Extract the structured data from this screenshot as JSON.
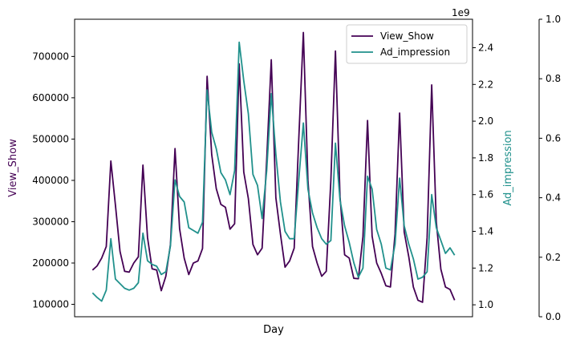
{
  "chart_data": {
    "type": "line",
    "xlabel": "Day",
    "show_x_ticks": false,
    "grid": false,
    "legend_placement": "top-right",
    "left_axis": {
      "label": "View_Show",
      "color": "#440154",
      "ylim": [
        70000,
        790000
      ],
      "ticks": [
        100000,
        200000,
        300000,
        400000,
        500000,
        600000,
        700000
      ],
      "tick_labels": [
        "100000",
        "200000",
        "300000",
        "400000",
        "500000",
        "600000",
        "700000"
      ]
    },
    "right_axis": {
      "label": "Ad_impression",
      "color": "#21918c",
      "ylim": [
        0.935,
        2.555
      ],
      "ticks": [
        1.0,
        1.2,
        1.4,
        1.6,
        1.8,
        2.0,
        2.2,
        2.4
      ],
      "tick_labels": [
        "1.0",
        "1.2",
        "1.4",
        "1.6",
        "1.8",
        "2.0",
        "2.2",
        "2.4"
      ],
      "offset_text": "1e9"
    },
    "extra_axis": {
      "ylim": [
        0,
        1
      ],
      "ticks": [
        0.0,
        0.2,
        0.4,
        0.6,
        0.8,
        1.0
      ],
      "tick_labels": [
        "0.0",
        "0.2",
        "0.4",
        "0.6",
        "0.8",
        "1.0"
      ]
    },
    "series": [
      {
        "name": "View_Show",
        "axis": "left",
        "color": "#440154",
        "values": [
          183000,
          193000,
          212000,
          240000,
          447000,
          340000,
          228000,
          180000,
          178000,
          200000,
          215000,
          437000,
          262000,
          186000,
          183000,
          133000,
          168000,
          245000,
          477000,
          283000,
          212000,
          172000,
          200000,
          205000,
          235000,
          652000,
          463000,
          380000,
          342000,
          335000,
          282000,
          295000,
          682000,
          420000,
          356000,
          245000,
          220000,
          236000,
          450000,
          692000,
          358000,
          270000,
          190000,
          205000,
          236000,
          500000,
          758000,
          400000,
          240000,
          200000,
          168000,
          180000,
          400000,
          713000,
          360000,
          220000,
          212000,
          163000,
          162000,
          264000,
          545000,
          265000,
          200000,
          175000,
          145000,
          142000,
          270000,
          563000,
          275000,
          215000,
          142000,
          110000,
          105000,
          262000,
          631000,
          300000,
          185000,
          142000,
          136000,
          110000
        ]
      },
      {
        "name": "Ad_impression",
        "axis": "right",
        "color": "#21918c",
        "values": [
          1.065,
          1.04,
          1.02,
          1.08,
          1.36,
          1.14,
          1.115,
          1.09,
          1.08,
          1.09,
          1.12,
          1.39,
          1.24,
          1.22,
          1.21,
          1.165,
          1.18,
          1.32,
          1.68,
          1.59,
          1.56,
          1.42,
          1.405,
          1.39,
          1.45,
          2.17,
          1.94,
          1.85,
          1.72,
          1.68,
          1.6,
          1.73,
          2.43,
          2.22,
          2.04,
          1.71,
          1.65,
          1.47,
          1.73,
          2.15,
          1.82,
          1.56,
          1.4,
          1.36,
          1.36,
          1.68,
          1.99,
          1.63,
          1.5,
          1.42,
          1.36,
          1.33,
          1.35,
          1.88,
          1.57,
          1.43,
          1.34,
          1.23,
          1.15,
          1.2,
          1.7,
          1.63,
          1.41,
          1.33,
          1.2,
          1.19,
          1.33,
          1.69,
          1.43,
          1.33,
          1.25,
          1.14,
          1.15,
          1.18,
          1.6,
          1.42,
          1.35,
          1.28,
          1.31,
          1.27
        ]
      }
    ]
  }
}
